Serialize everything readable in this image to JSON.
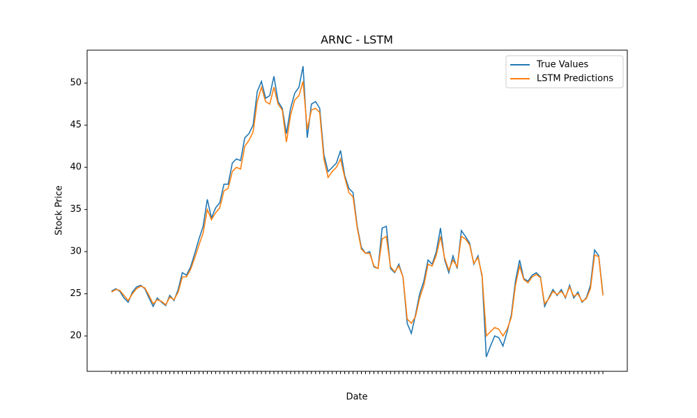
{
  "chart_data": {
    "type": "line",
    "title": "ARNC - LSTM",
    "xlabel": "Date",
    "ylabel": "Stock Price",
    "categories": [
      null,
      null,
      null,
      null,
      null,
      null,
      null,
      null,
      null,
      null,
      null,
      null,
      null,
      null,
      null,
      null,
      null,
      null,
      null,
      null,
      null,
      null,
      null,
      null,
      null,
      null,
      null,
      null,
      null,
      null,
      null,
      null,
      null,
      null,
      null,
      null,
      null,
      null,
      null,
      null,
      null,
      null,
      null,
      null,
      null,
      null,
      null,
      null,
      null,
      null,
      null,
      null,
      null,
      null,
      null,
      null,
      null,
      null,
      null,
      null,
      null,
      null,
      null,
      null,
      null,
      null,
      null,
      null,
      null,
      null,
      null,
      null,
      null,
      null,
      null,
      null,
      null,
      null,
      null,
      null,
      null,
      null,
      null,
      null,
      null,
      null,
      null,
      null,
      null,
      null,
      null,
      null,
      null,
      null,
      null,
      null,
      null,
      null,
      null,
      null,
      null,
      null,
      null,
      null,
      null,
      null,
      null,
      null,
      null,
      null,
      null,
      null,
      null,
      null,
      null,
      null,
      null,
      null,
      null
    ],
    "series": [
      {
        "name": "True Values",
        "color": "#1f77b4",
        "values": [
          25.3,
          25.6,
          25.3,
          24.5,
          24.0,
          25.2,
          25.8,
          26.0,
          25.6,
          24.5,
          23.5,
          24.5,
          24.0,
          23.6,
          24.8,
          24.2,
          25.5,
          27.5,
          27.2,
          28.2,
          29.8,
          31.5,
          33.0,
          36.2,
          34.0,
          35.2,
          35.8,
          38.0,
          38.0,
          40.5,
          41.0,
          40.8,
          43.5,
          44.0,
          45.0,
          49.0,
          50.2,
          48.2,
          48.5,
          50.8,
          47.8,
          47.0,
          44.0,
          47.0,
          48.8,
          49.5,
          52.0,
          43.5,
          47.5,
          47.8,
          47.0,
          41.5,
          39.5,
          40.0,
          40.5,
          42.0,
          39.0,
          37.5,
          37.0,
          33.0,
          30.5,
          29.8,
          30.0,
          28.2,
          28.0,
          32.8,
          33.0,
          28.0,
          27.5,
          28.5,
          27.0,
          21.5,
          20.3,
          22.5,
          25.0,
          26.5,
          29.0,
          28.5,
          30.0,
          32.8,
          29.0,
          27.5,
          29.5,
          28.0,
          32.5,
          31.8,
          31.0,
          28.5,
          29.5,
          27.0,
          17.5,
          18.8,
          20.0,
          19.8,
          18.8,
          20.5,
          22.5,
          26.5,
          29.0,
          26.8,
          26.5,
          27.2,
          27.5,
          27.0,
          23.5,
          24.5,
          25.5,
          24.8,
          25.5,
          24.5,
          26.0,
          24.5,
          25.2,
          24.0,
          24.5,
          26.0,
          30.2,
          29.5,
          25.0
        ]
      },
      {
        "name": "LSTM Predictions",
        "color": "#ff7f0e",
        "values": [
          25.2,
          25.5,
          25.4,
          24.8,
          24.2,
          25.0,
          25.6,
          25.9,
          25.7,
          24.8,
          23.8,
          24.3,
          24.1,
          23.7,
          24.6,
          24.3,
          25.2,
          27.0,
          27.0,
          27.9,
          29.3,
          30.8,
          32.2,
          35.0,
          33.8,
          34.6,
          35.2,
          37.2,
          37.5,
          39.5,
          40.0,
          39.8,
          42.5,
          43.2,
          44.2,
          47.8,
          49.5,
          47.8,
          47.5,
          49.5,
          47.5,
          46.8,
          43.0,
          46.2,
          48.0,
          48.5,
          50.2,
          44.5,
          46.8,
          47.0,
          46.5,
          41.0,
          38.8,
          39.5,
          40.0,
          41.0,
          38.8,
          37.0,
          36.5,
          32.8,
          30.3,
          29.8,
          29.8,
          28.3,
          28.0,
          31.5,
          31.8,
          28.2,
          27.6,
          28.3,
          27.0,
          22.0,
          21.5,
          22.3,
          24.5,
          26.0,
          28.5,
          28.3,
          29.6,
          31.8,
          29.2,
          27.8,
          29.0,
          28.2,
          31.8,
          31.5,
          30.8,
          28.6,
          29.3,
          27.2,
          20.0,
          20.5,
          21.0,
          20.8,
          20.0,
          20.8,
          22.2,
          26.0,
          28.3,
          26.7,
          26.3,
          27.0,
          27.3,
          26.9,
          23.8,
          24.4,
          25.3,
          24.9,
          25.3,
          24.6,
          25.8,
          24.7,
          25.0,
          24.1,
          24.4,
          25.6,
          29.6,
          29.4,
          24.8
        ]
      }
    ],
    "ylim": [
      15.8,
      53.9
    ],
    "yticks": [
      20,
      25,
      30,
      35,
      40,
      45,
      50
    ],
    "grid": false,
    "legend": "upper right"
  }
}
